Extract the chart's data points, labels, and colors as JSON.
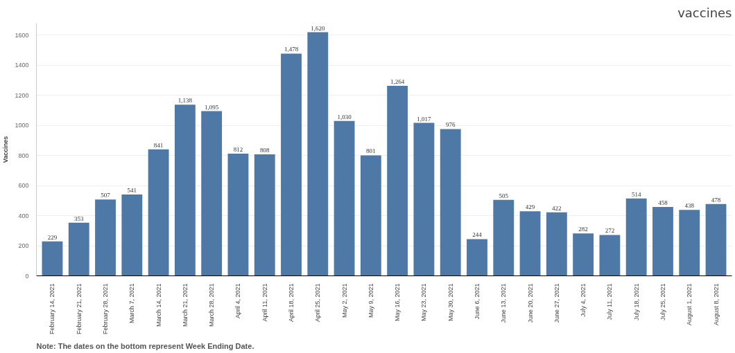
{
  "chart_data": {
    "type": "bar",
    "title": "vaccines",
    "ylabel": "Vaccines",
    "categories": [
      "February 14, 2021",
      "February 21, 2021",
      "February 28, 2021",
      "March 7, 2021",
      "March 14, 2021",
      "March 21, 2021",
      "March 28, 2021",
      "April 4, 2021",
      "April 11, 2021",
      "April 18, 2021",
      "April 25, 2021",
      "May 2, 2021",
      "May 9, 2021",
      "May 16, 2021",
      "May 23, 2021",
      "May 30, 2021",
      "June 6, 2021",
      "June 13, 2021",
      "June 20, 2021",
      "June 27, 2021",
      "July 4, 2021",
      "July 11, 2021",
      "July 18, 2021",
      "July 25, 2021",
      "August 1, 2021",
      "August 8, 2021"
    ],
    "values": [
      229,
      353,
      507,
      541,
      841,
      1138,
      1095,
      812,
      808,
      1478,
      1620,
      1030,
      801,
      1264,
      1017,
      976,
      244,
      505,
      429,
      422,
      282,
      272,
      514,
      458,
      438,
      478
    ],
    "color": "#4e79a7",
    "ylim": [
      0,
      1680
    ],
    "yticks": [
      0,
      200,
      400,
      600,
      800,
      1000,
      1200,
      1400,
      1600
    ],
    "value_labels": [
      "229",
      "353",
      "507",
      "541",
      "841",
      "1,138",
      "1,095",
      "812",
      "808",
      "1,478",
      "1,620",
      "1,030",
      "801",
      "1,264",
      "1,017",
      "976",
      "244",
      "505",
      "429",
      "422",
      "282",
      "272",
      "514",
      "458",
      "438",
      "478"
    ],
    "grid": "y",
    "annotations": [
      "Note: The dates on the bottom represent Week Ending Date."
    ]
  }
}
